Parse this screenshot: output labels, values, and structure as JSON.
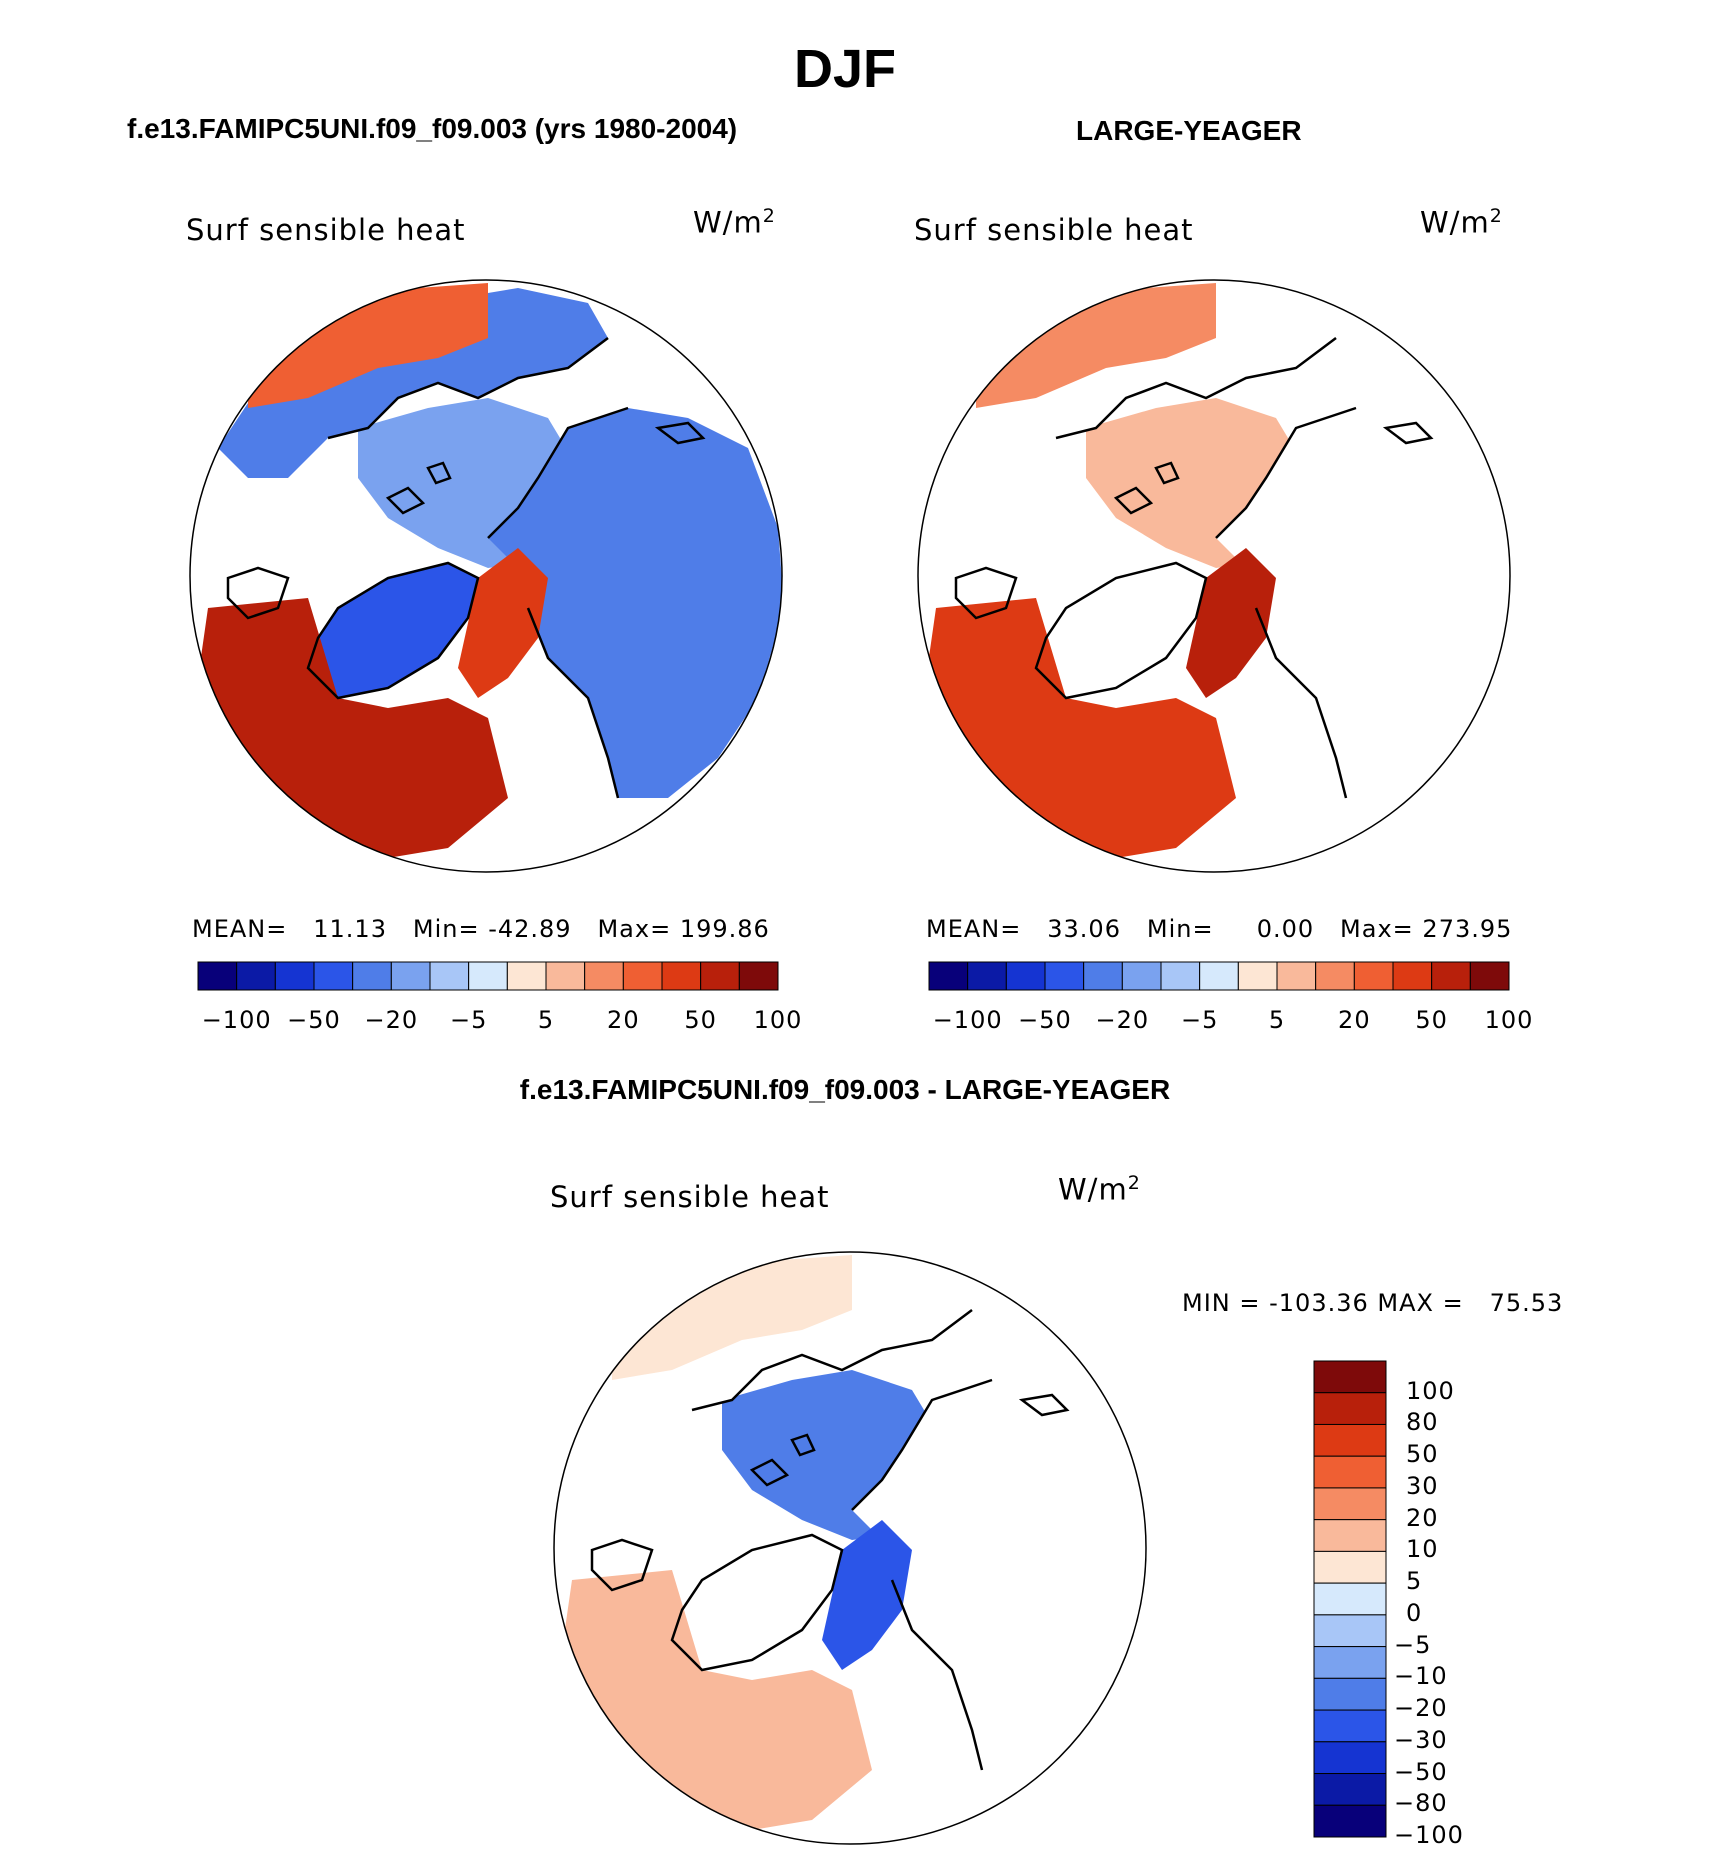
{
  "figure": {
    "title": "DJF",
    "diff_title": "f.e13.FAMIPC5UNI.f09_f09.003 - LARGE-YEAGER"
  },
  "colors": {
    "map_levels": [
      "#08007a",
      "#0b1aa6",
      "#1534d2",
      "#2b55e8",
      "#4f7de8",
      "#7aa2ef",
      "#a8c6f7",
      "#d6e9fc",
      "#fde6d4",
      "#f9b99b",
      "#f58b63",
      "#ef5f33",
      "#dd3a14",
      "#b8200b",
      "#7e0a0a"
    ],
    "diff_levels": [
      "#08007a",
      "#0b1aa6",
      "#1534d2",
      "#2b55e8",
      "#4f7de8",
      "#7aa2ef",
      "#a8c6f7",
      "#d6e9fc",
      "#fde6d4",
      "#f9b99b",
      "#f58b63",
      "#ef5f33",
      "#dd3a14",
      "#b8200b",
      "#7e0a0a"
    ],
    "coast": "#000000"
  },
  "chart_data": [
    {
      "type": "heatmap",
      "projection": "north-polar-stereographic",
      "title": "f.e13.FAMIPC5UNI.f09_f09.003 (yrs 1980-2004)",
      "variable": "Surf sensible heat",
      "units": "W/m",
      "units_power": "2",
      "stats": {
        "mean_label": "MEAN=",
        "mean": "11.13",
        "min_label": "Min=",
        "min": "-42.89",
        "max_label": "Max=",
        "max": "199.86"
      },
      "colorbar": {
        "levels": [
          -100,
          -75,
          -50,
          -35,
          -20,
          -10,
          -5,
          0,
          5,
          10,
          20,
          35,
          50,
          75,
          100
        ],
        "tick_labels": [
          "-100",
          "-50",
          "-20",
          "-5",
          "5",
          "20",
          "50",
          "100"
        ]
      },
      "regions": {
        "arctic_ocean": -10,
        "eurasia": -20,
        "north_america": -20,
        "greenland": -35,
        "nordic_seas": 50,
        "north_atlantic": 75,
        "north_pacific": 35
      }
    },
    {
      "type": "heatmap",
      "projection": "north-polar-stereographic",
      "title": "LARGE-YEAGER",
      "variable": "Surf sensible heat",
      "units": "W/m",
      "units_power": "2",
      "stats": {
        "mean_label": "MEAN=",
        "mean": "33.06",
        "min_label": "Min=",
        "min": "0.00",
        "max_label": "Max=",
        "max": "273.95"
      },
      "colorbar": {
        "levels": [
          -100,
          -75,
          -50,
          -35,
          -20,
          -10,
          -5,
          0,
          5,
          10,
          20,
          35,
          50,
          75,
          100
        ],
        "tick_labels": [
          "-100",
          "-50",
          "-20",
          "-5",
          "5",
          "20",
          "50",
          "100"
        ]
      },
      "regions": {
        "arctic_ocean": 10,
        "eurasia": null,
        "north_america": null,
        "greenland": null,
        "nordic_seas": 75,
        "north_atlantic": 50,
        "north_pacific": 20
      }
    },
    {
      "type": "heatmap",
      "projection": "north-polar-stereographic",
      "title": "f.e13.FAMIPC5UNI.f09_f09.003 - LARGE-YEAGER",
      "variable": "Surf sensible heat",
      "units": "W/m",
      "units_power": "2",
      "stats": {
        "min_label": "MIN =",
        "min": "-103.36",
        "max_label": "MAX =",
        "max": "75.53"
      },
      "colorbar": {
        "levels": [
          -100,
          -80,
          -50,
          -30,
          -20,
          -10,
          -5,
          0,
          5,
          10,
          20,
          30,
          50,
          80,
          100
        ],
        "tick_labels": [
          "100",
          "80",
          "50",
          "30",
          "20",
          "10",
          "5",
          "0",
          "-5",
          "-10",
          "-20",
          "-30",
          "-50",
          "-80",
          "-100"
        ]
      },
      "regions": {
        "arctic_ocean": -20,
        "eurasia": null,
        "north_america": null,
        "greenland": null,
        "nordic_seas": -30,
        "north_atlantic": 10,
        "north_pacific": 5
      }
    }
  ]
}
